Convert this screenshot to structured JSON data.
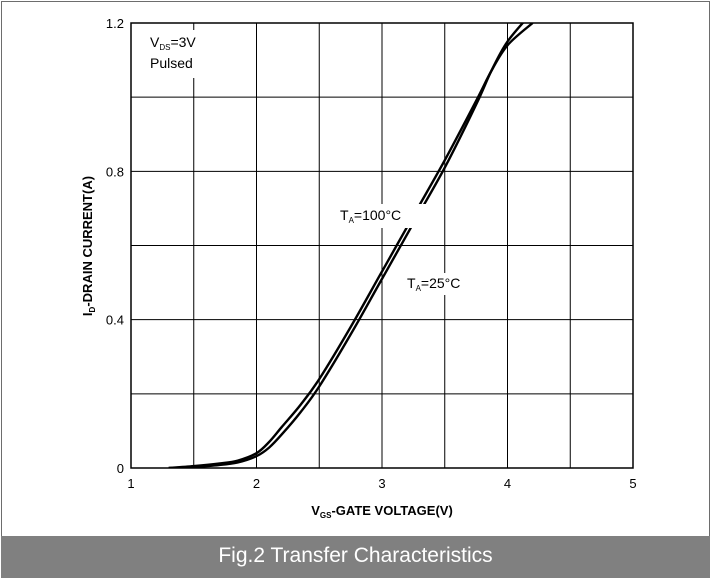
{
  "figure": {
    "caption": "Fig.2 Transfer Characteristics"
  },
  "chart_data": {
    "type": "line",
    "xlabel": {
      "main": "V",
      "sub": "GS",
      "rest": "-GATE VOLTAGE(V)"
    },
    "ylabel": {
      "main": "I",
      "sub": "D",
      "rest": "-DRAIN CURRENT(A)"
    },
    "xlim": [
      1,
      5
    ],
    "ylim": [
      0,
      1.2
    ],
    "x_ticks": [
      1,
      2,
      3,
      4,
      5
    ],
    "y_ticks": [
      0,
      0.4,
      0.8,
      1.2
    ],
    "x_tick_labels": [
      "1",
      "2",
      "3",
      "4",
      "5"
    ],
    "y_tick_labels": [
      "0",
      "0.4",
      "0.8",
      "1.2"
    ],
    "grid": true,
    "condition": {
      "main": "V",
      "sub": "DS",
      "rest": "=3V",
      "line2": "Pulsed"
    },
    "series": [
      {
        "name": "TA=100°C",
        "label": {
          "main": "T",
          "sub": "A",
          "rest": "=100°C"
        },
        "x": [
          1.3,
          1.5,
          1.7,
          1.85,
          2.0,
          2.1,
          2.2,
          2.35,
          2.5,
          2.75,
          3.0,
          3.25,
          3.5,
          3.75,
          3.87,
          4.0,
          4.2
        ],
        "y": [
          0.0,
          0.005,
          0.012,
          0.02,
          0.04,
          0.07,
          0.11,
          0.17,
          0.24,
          0.38,
          0.53,
          0.68,
          0.83,
          0.99,
          1.07,
          1.14,
          1.2
        ]
      },
      {
        "name": "TA=25°C",
        "label": {
          "main": "T",
          "sub": "A",
          "rest": "=25°C"
        },
        "x": [
          1.3,
          1.5,
          1.7,
          1.85,
          2.0,
          2.1,
          2.2,
          2.35,
          2.5,
          2.75,
          3.0,
          3.25,
          3.5,
          3.75,
          3.87,
          4.0,
          4.2
        ],
        "y": [
          0.0,
          0.003,
          0.008,
          0.015,
          0.032,
          0.055,
          0.09,
          0.15,
          0.22,
          0.36,
          0.51,
          0.66,
          0.81,
          0.98,
          1.07,
          1.15,
          1.23
        ]
      }
    ]
  }
}
